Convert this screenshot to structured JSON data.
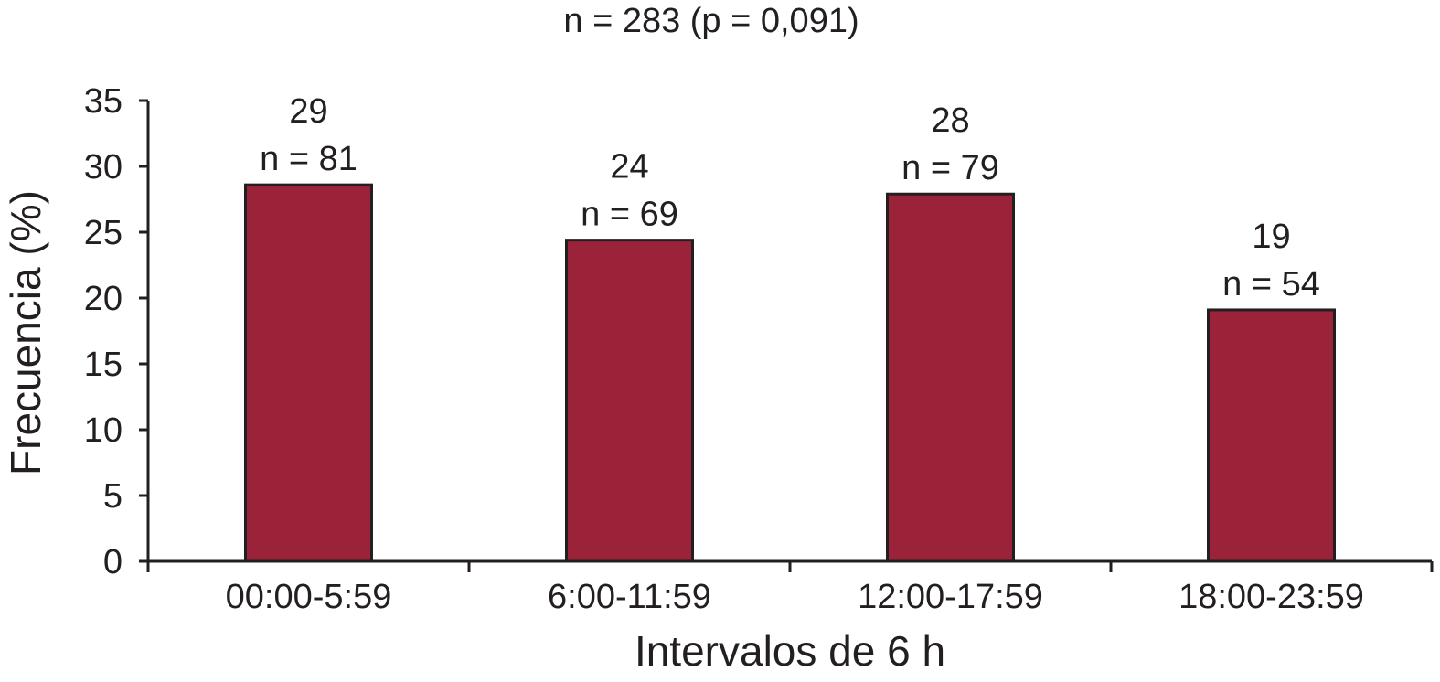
{
  "chart_data": {
    "type": "bar",
    "title": "n = 283 (p = 0,091)",
    "xlabel": "Intervalos de 6 h",
    "ylabel": "Frecuencia (%)",
    "ylim": [
      0,
      35
    ],
    "yticks": [
      0,
      5,
      10,
      15,
      20,
      25,
      30,
      35
    ],
    "categories": [
      "00:00-5:59",
      "6:00-11:59",
      "12:00-17:59",
      "18:00-23:59"
    ],
    "values": [
      28.6,
      24.4,
      27.9,
      19.1
    ],
    "data_labels": [
      {
        "percent": "29",
        "n": "n = 81"
      },
      {
        "percent": "24",
        "n": "n = 69"
      },
      {
        "percent": "28",
        "n": "n = 79"
      },
      {
        "percent": "19",
        "n": "n = 54"
      }
    ],
    "grid": false,
    "legend": "none",
    "colors": {
      "bar": "#9b2339",
      "stroke": "#231f20",
      "text": "#231f20"
    }
  }
}
